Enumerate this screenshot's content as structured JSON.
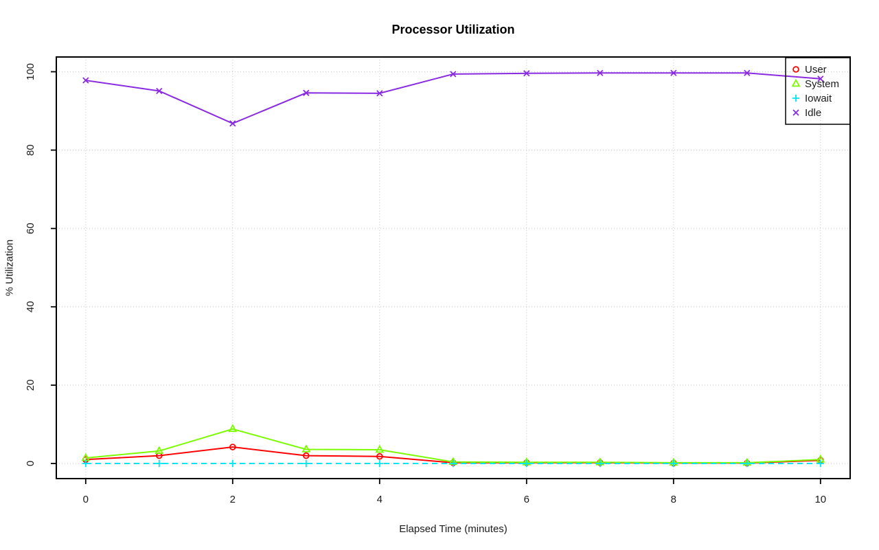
{
  "chart_data": {
    "type": "line",
    "title": "Processor Utilization",
    "xlabel": "Elapsed Time (minutes)",
    "ylabel": "% Utilization",
    "x": [
      0,
      1,
      2,
      3,
      4,
      5,
      6,
      7,
      8,
      9,
      10
    ],
    "x_ticks": [
      0,
      2,
      4,
      6,
      8,
      10
    ],
    "y_ticks": [
      0,
      20,
      40,
      60,
      80,
      100
    ],
    "xlim": [
      -0.4,
      10.4
    ],
    "ylim": [
      -3.9,
      103.8
    ],
    "grid": true,
    "grid_style": "dotted",
    "legend_position": "top-right",
    "series": [
      {
        "name": "User",
        "color": "#FF0000",
        "marker": "circle",
        "line": "solid",
        "values": [
          1.0,
          2.0,
          4.2,
          2.0,
          1.8,
          0.2,
          0.2,
          0.2,
          0.1,
          0.1,
          0.8
        ]
      },
      {
        "name": "System",
        "color": "#7CFC00",
        "marker": "triangle",
        "line": "solid",
        "values": [
          1.4,
          3.2,
          8.8,
          3.6,
          3.5,
          0.4,
          0.3,
          0.3,
          0.2,
          0.2,
          1.0
        ]
      },
      {
        "name": "Iowait",
        "color": "#00E5EE",
        "marker": "plus",
        "line": "dashed",
        "values": [
          0,
          0,
          0,
          0,
          0,
          0,
          0,
          0,
          0,
          0,
          0
        ]
      },
      {
        "name": "Idle",
        "color": "#8A2BE2",
        "marker": "x",
        "line": "solid",
        "values": [
          97.8,
          95.1,
          86.8,
          94.6,
          94.5,
          99.4,
          99.6,
          99.7,
          99.7,
          99.7,
          98.2
        ]
      }
    ]
  },
  "colors": {
    "grid": "#C8C8C8",
    "axis": "#000000",
    "tick_text": "#1A1A1A",
    "legend_text": "#1A1A1A",
    "background": "#FFFFFF"
  }
}
